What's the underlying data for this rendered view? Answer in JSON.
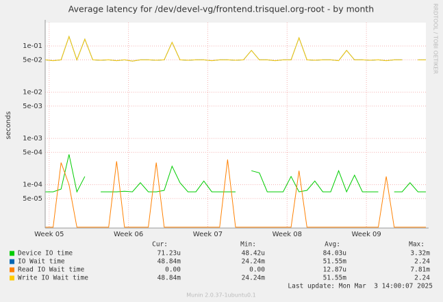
{
  "chart_data": {
    "type": "line",
    "title": "Average latency for /dev/devel-vg/frontend.trisquel.org-root - by month",
    "y_label": "seconds",
    "log_scale": true,
    "grid": true,
    "xlim": [
      0,
      48
    ],
    "xticks": [
      {
        "value": 0.5,
        "label": "Week 05"
      },
      {
        "value": 10.5,
        "label": "Week 06"
      },
      {
        "value": 20.5,
        "label": "Week 07"
      },
      {
        "value": 30.5,
        "label": "Week 08"
      },
      {
        "value": 40.5,
        "label": "Week 09"
      }
    ],
    "ylim": [
      1.15e-05,
      0.32
    ],
    "yticks": [
      {
        "value": 0.1,
        "label": "1e-01"
      },
      {
        "value": 0.05,
        "label": "5e-02"
      },
      {
        "value": 0.01,
        "label": "1e-02"
      },
      {
        "value": 0.005,
        "label": "5e-03"
      },
      {
        "value": 0.001,
        "label": "1e-03"
      },
      {
        "value": 0.0005,
        "label": "5e-04"
      },
      {
        "value": 0.0001,
        "label": "1e-04"
      },
      {
        "value": 5e-05,
        "label": "5e-05"
      }
    ],
    "stat_headers": [
      "Cur:",
      "Min:",
      "Avg:",
      "Max:"
    ],
    "series": [
      {
        "name": "Device IO time",
        "color": "#00cc00",
        "stats": [
          "71.23u",
          "48.42u",
          "84.03u",
          "3.32m"
        ],
        "values": [
          7e-05,
          7e-05,
          8e-05,
          0.00045,
          7e-05,
          0.00015,
          null,
          7e-05,
          7e-05,
          7e-05,
          7.2e-05,
          7e-05,
          0.00011,
          7e-05,
          7e-05,
          7.5e-05,
          0.00025,
          0.00011,
          7e-05,
          7e-05,
          0.00012,
          7e-05,
          7e-05,
          7e-05,
          7e-05,
          null,
          0.0002,
          0.00018,
          7e-05,
          7e-05,
          7e-05,
          0.00015,
          7e-05,
          7.5e-05,
          0.00012,
          7e-05,
          7e-05,
          0.0002,
          7e-05,
          0.00016,
          7e-05,
          7e-05,
          7e-05,
          null,
          7e-05,
          7e-05,
          0.00011,
          7e-05,
          7e-05
        ]
      },
      {
        "name": "IO Wait time",
        "color": "#0066b3",
        "stats": [
          "48.84m",
          "24.24m",
          "51.55m",
          "2.24"
        ],
        "values": [
          0.05,
          0.048,
          0.05,
          0.16,
          0.05,
          0.14,
          0.05,
          0.049,
          0.05,
          0.048,
          0.05,
          0.047,
          0.05,
          0.05,
          0.049,
          0.05,
          0.12,
          0.05,
          0.049,
          0.05,
          0.05,
          0.048,
          0.05,
          0.05,
          0.049,
          0.05,
          0.08,
          0.05,
          0.05,
          0.048,
          0.05,
          0.05,
          0.15,
          0.05,
          0.049,
          0.05,
          0.05,
          0.048,
          0.08,
          0.05,
          0.05,
          0.049,
          0.05,
          0.048,
          0.05,
          0.05,
          null,
          0.05,
          0.05
        ]
      },
      {
        "name": "Read IO Wait time",
        "color": "#ff8000",
        "stats": [
          "0.00",
          "0.00",
          "12.87u",
          "7.81m"
        ],
        "values": [
          1.2e-05,
          1.2e-05,
          0.0003,
          0.0001,
          1.2e-05,
          1.2e-05,
          1.2e-05,
          1.2e-05,
          1.2e-05,
          0.00032,
          1.2e-05,
          1.2e-05,
          1.2e-05,
          1.2e-05,
          0.0003,
          1.2e-05,
          1.2e-05,
          1.2e-05,
          1.2e-05,
          1.2e-05,
          1.2e-05,
          1.2e-05,
          1.2e-05,
          0.00035,
          1.2e-05,
          1.2e-05,
          1.2e-05,
          1.2e-05,
          1.2e-05,
          1.2e-05,
          1.2e-05,
          1.2e-05,
          0.0002,
          1.2e-05,
          1.2e-05,
          1.2e-05,
          1.2e-05,
          1.2e-05,
          1.2e-05,
          1.2e-05,
          1.2e-05,
          1.2e-05,
          1.2e-05,
          0.00015,
          1.2e-05,
          1.2e-05,
          1.2e-05,
          1.2e-05,
          1.2e-05
        ]
      },
      {
        "name": "Write IO Wait time",
        "color": "#ffcc00",
        "stats": [
          "48.84m",
          "24.24m",
          "51.55m",
          "2.24"
        ],
        "values": [
          0.05,
          0.048,
          0.05,
          0.16,
          0.05,
          0.14,
          0.05,
          0.049,
          0.05,
          0.048,
          0.05,
          0.047,
          0.05,
          0.05,
          0.049,
          0.05,
          0.12,
          0.05,
          0.049,
          0.05,
          0.05,
          0.048,
          0.05,
          0.05,
          0.049,
          0.05,
          0.08,
          0.05,
          0.05,
          0.048,
          0.05,
          0.05,
          0.15,
          0.05,
          0.049,
          0.05,
          0.05,
          0.048,
          0.08,
          0.05,
          0.05,
          0.049,
          0.05,
          0.048,
          0.05,
          0.05,
          null,
          0.05,
          0.05
        ]
      }
    ],
    "last_update": "Last update: Mon Mar  3 14:00:07 2025",
    "footer": "Munin 2.0.37-1ubuntu0.1",
    "side_text": "RRDTOOL / TOBI OETIKER"
  }
}
